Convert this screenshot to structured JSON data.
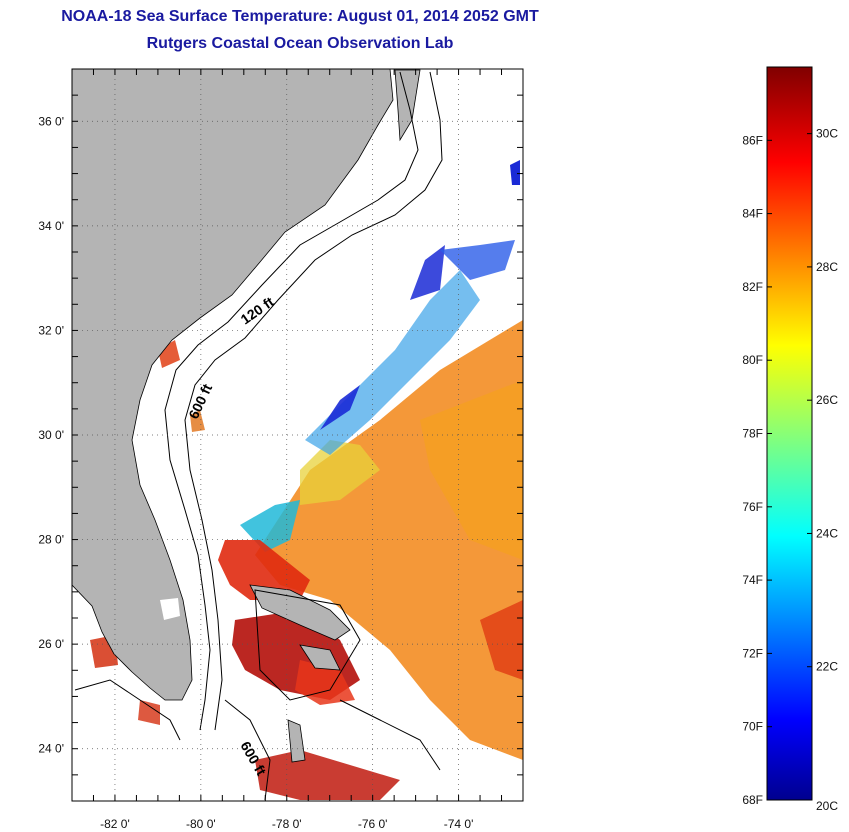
{
  "header": {
    "title": "NOAA-18 Sea Surface Temperature:  August 01, 2014 2052 GMT",
    "subtitle": "Rutgers Coastal Ocean Observation Lab"
  },
  "map": {
    "lon_range": [
      -83,
      -72.5
    ],
    "lat_range": [
      23,
      37
    ],
    "lon_ticks": [
      {
        "value": -82,
        "label": "-82 0'"
      },
      {
        "value": -80,
        "label": "-80 0'"
      },
      {
        "value": -78,
        "label": "-78 0'"
      },
      {
        "value": -76,
        "label": "-76 0'"
      },
      {
        "value": -74,
        "label": "-74 0'"
      }
    ],
    "lat_ticks": [
      {
        "value": 24,
        "label": "24 0'"
      },
      {
        "value": 26,
        "label": "26 0'"
      },
      {
        "value": 28,
        "label": "28 0'"
      },
      {
        "value": 30,
        "label": "30 0'"
      },
      {
        "value": 32,
        "label": "32 0'"
      },
      {
        "value": 34,
        "label": "34 0'"
      },
      {
        "value": 36,
        "label": "36 0'"
      }
    ],
    "contour_labels": {
      "c120": "120 ft",
      "c600a": "600 ft",
      "c600b": "600 ft"
    },
    "land_color": "#b4b4b4",
    "grid": "dotted"
  },
  "colorbar": {
    "range_f": [
      68,
      88
    ],
    "range_c": [
      20,
      31
    ],
    "f_labels": [
      {
        "value": 68,
        "label": "68F"
      },
      {
        "value": 70,
        "label": "70F"
      },
      {
        "value": 72,
        "label": "72F"
      },
      {
        "value": 74,
        "label": "74F"
      },
      {
        "value": 76,
        "label": "76F"
      },
      {
        "value": 78,
        "label": "78F"
      },
      {
        "value": 80,
        "label": "80F"
      },
      {
        "value": 82,
        "label": "82F"
      },
      {
        "value": 84,
        "label": "84F"
      },
      {
        "value": 86,
        "label": "86F"
      }
    ],
    "c_labels": [
      {
        "value": 20,
        "label": "20C"
      },
      {
        "value": 22,
        "label": "22C"
      },
      {
        "value": 24,
        "label": "24C"
      },
      {
        "value": 26,
        "label": "26C"
      },
      {
        "value": 28,
        "label": "28C"
      },
      {
        "value": 30,
        "label": "30C"
      }
    ],
    "colormap": "jet"
  }
}
